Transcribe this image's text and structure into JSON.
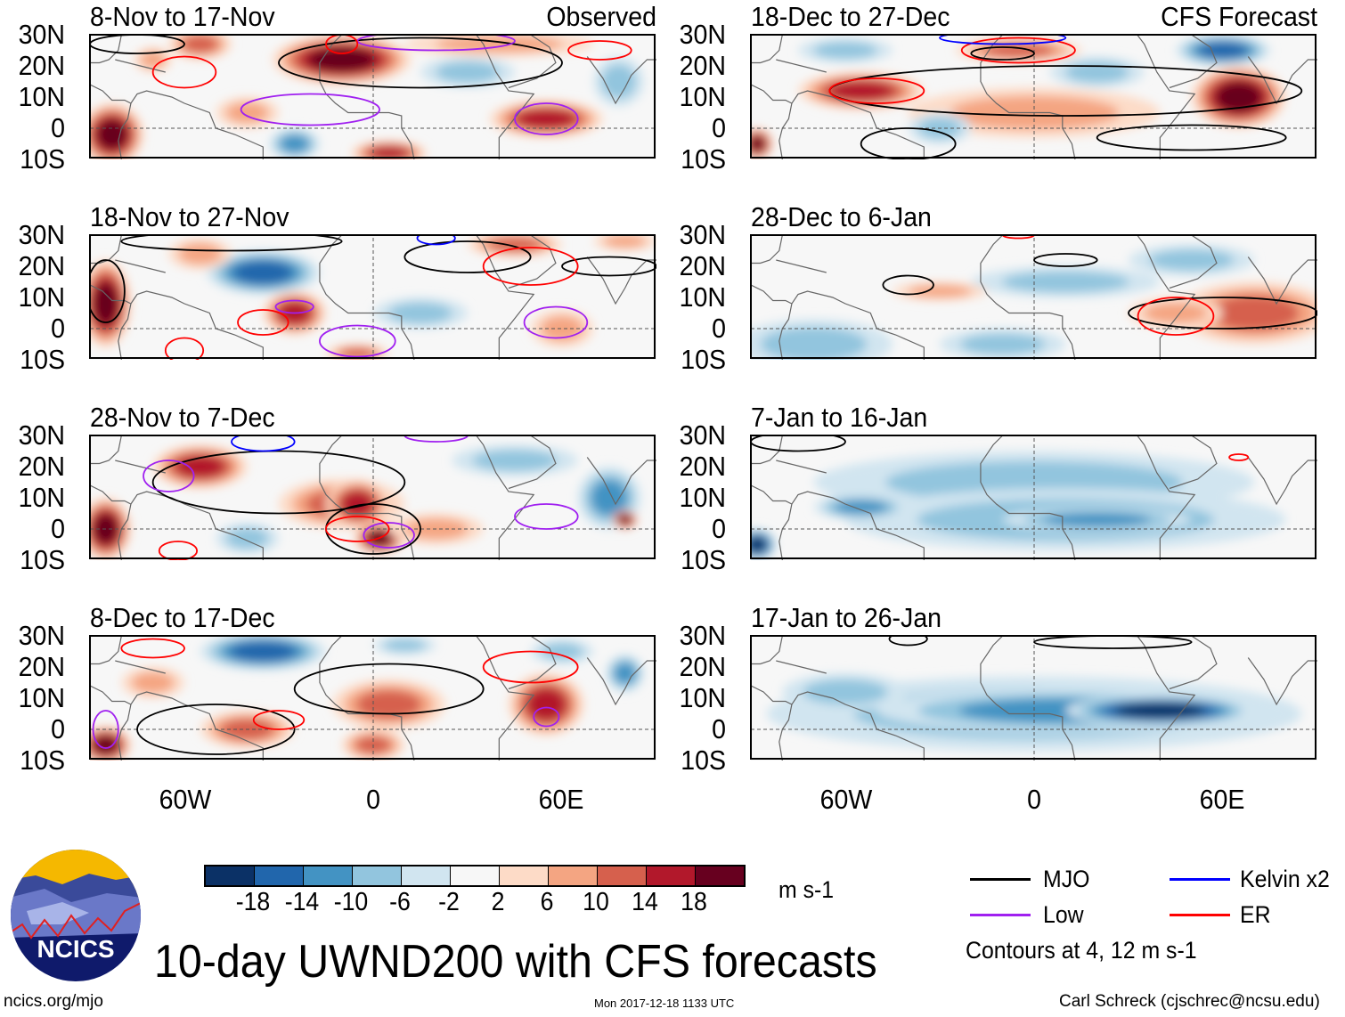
{
  "colors": {
    "bins": [
      "#0b3166",
      "#2166ac",
      "#4393c3",
      "#92c5de",
      "#d1e5f0",
      "#f7f7f7",
      "#fddbc7",
      "#f4a582",
      "#d6604d",
      "#b2182b",
      "#67001f"
    ],
    "mjo": "#000000",
    "low": "#a020f0",
    "kelvin": "#0000ff",
    "er": "#ff0000",
    "coast": "#666666"
  },
  "lat_ticks": [
    "30N",
    "20N",
    "10N",
    "0",
    "10S"
  ],
  "lon_ticks": [
    "60W",
    "0",
    "60E"
  ],
  "chart_data": {
    "type": "heatmap",
    "title": "10-day UWND200 with CFS forecasts",
    "units": "m s-1",
    "lon_range": [
      -90,
      90
    ],
    "lat_range": [
      -10,
      30
    ],
    "colorbar_ticks": [
      "-18",
      "-14",
      "-10",
      "-6",
      "-2",
      "2",
      "6",
      "10",
      "14",
      "18"
    ],
    "contour_note": "Contours at 4, 12 m s-1",
    "legend": [
      {
        "key": "mjo",
        "label": "MJO"
      },
      {
        "key": "kelvin",
        "label": "Kelvin x2"
      },
      {
        "key": "low",
        "label": "Low"
      },
      {
        "key": "er",
        "label": "ER"
      }
    ],
    "panels": [
      {
        "title": "8-Nov to 17-Nov",
        "label": "Observed",
        "column": "observed",
        "blobs": [
          [
            40,
            27,
            30,
            4,
            6
          ],
          [
            -10,
            22,
            22,
            8,
            18
          ],
          [
            -83,
            -2,
            10,
            10,
            16
          ],
          [
            -55,
            27,
            10,
            5,
            10
          ],
          [
            55,
            3,
            18,
            6,
            12
          ],
          [
            5,
            -8,
            12,
            4,
            12
          ],
          [
            -40,
            5,
            10,
            5,
            6
          ],
          [
            -25,
            -5,
            8,
            5,
            -8
          ],
          [
            30,
            18,
            15,
            5,
            -6
          ],
          [
            78,
            15,
            8,
            8,
            -4
          ],
          [
            -70,
            22,
            6,
            4,
            6
          ]
        ],
        "contours": [
          [
            "mjo",
            15,
            21,
            45,
            8
          ],
          [
            "mjo",
            -75,
            27,
            15,
            3
          ],
          [
            "low",
            55,
            3,
            10,
            5
          ],
          [
            "low",
            -20,
            6,
            22,
            5
          ],
          [
            "low",
            20,
            28,
            25,
            3
          ],
          [
            "er",
            -60,
            18,
            10,
            5
          ],
          [
            "er",
            72,
            25,
            10,
            3
          ],
          [
            "er",
            -10,
            27,
            5,
            3
          ]
        ]
      },
      {
        "title": "18-Nov to 27-Nov",
        "label": "",
        "column": "observed",
        "blobs": [
          [
            -85,
            8,
            8,
            14,
            18
          ],
          [
            -25,
            5,
            10,
            7,
            14
          ],
          [
            -35,
            18,
            18,
            7,
            -14
          ],
          [
            45,
            27,
            15,
            4,
            10
          ],
          [
            60,
            0,
            10,
            6,
            6
          ],
          [
            -5,
            -8,
            10,
            3,
            8
          ],
          [
            -55,
            24,
            10,
            5,
            6
          ],
          [
            80,
            28,
            10,
            3,
            6
          ],
          [
            15,
            5,
            15,
            5,
            -4
          ]
        ],
        "contours": [
          [
            "mjo",
            -45,
            28,
            35,
            3
          ],
          [
            "mjo",
            30,
            23,
            20,
            5
          ],
          [
            "mjo",
            75,
            20,
            15,
            3
          ],
          [
            "mjo",
            -85,
            12,
            6,
            10
          ],
          [
            "low",
            -25,
            7,
            6,
            2
          ],
          [
            "low",
            58,
            2,
            10,
            5
          ],
          [
            "low",
            -5,
            -4,
            12,
            5
          ],
          [
            "er",
            -35,
            2,
            8,
            4
          ],
          [
            "er",
            50,
            20,
            15,
            6
          ],
          [
            "kelvin",
            20,
            29,
            6,
            2
          ],
          [
            "er",
            -60,
            -7,
            6,
            4
          ]
        ]
      },
      {
        "title": "28-Nov to 7-Dec",
        "label": "",
        "column": "observed",
        "blobs": [
          [
            -55,
            20,
            15,
            7,
            14
          ],
          [
            -85,
            0,
            8,
            10,
            16
          ],
          [
            -10,
            8,
            20,
            8,
            10
          ],
          [
            -5,
            8,
            10,
            8,
            14
          ],
          [
            2,
            -3,
            8,
            5,
            18
          ],
          [
            20,
            0,
            15,
            5,
            6
          ],
          [
            75,
            10,
            10,
            10,
            -10
          ],
          [
            45,
            22,
            20,
            5,
            -4
          ],
          [
            -40,
            -3,
            10,
            5,
            -4
          ],
          [
            80,
            3,
            4,
            3,
            18
          ]
        ],
        "contours": [
          [
            "mjo",
            -30,
            15,
            40,
            10
          ],
          [
            "mjo",
            0,
            0,
            15,
            8
          ],
          [
            "low",
            55,
            4,
            10,
            4
          ],
          [
            "low",
            5,
            -2,
            8,
            4
          ],
          [
            "low",
            -65,
            17,
            8,
            5
          ],
          [
            "kelvin",
            -35,
            28,
            10,
            3
          ],
          [
            "er",
            -5,
            0,
            10,
            4
          ],
          [
            "er",
            -62,
            -7,
            6,
            3
          ],
          [
            "low",
            20,
            30,
            10,
            2
          ]
        ]
      },
      {
        "title": "8-Dec to 17-Dec",
        "label": "",
        "column": "observed",
        "blobs": [
          [
            -35,
            25,
            20,
            6,
            -14
          ],
          [
            10,
            27,
            10,
            3,
            -6
          ],
          [
            55,
            8,
            12,
            10,
            14
          ],
          [
            5,
            8,
            18,
            8,
            10
          ],
          [
            -40,
            0,
            15,
            6,
            8
          ],
          [
            -85,
            -5,
            8,
            6,
            16
          ],
          [
            -70,
            15,
            10,
            5,
            6
          ],
          [
            60,
            25,
            10,
            4,
            -4
          ],
          [
            0,
            -5,
            10,
            5,
            8
          ],
          [
            80,
            18,
            6,
            6,
            -10
          ]
        ],
        "contours": [
          [
            "mjo",
            5,
            13,
            30,
            8
          ],
          [
            "mjo",
            -50,
            0,
            25,
            8
          ],
          [
            "er",
            50,
            20,
            15,
            5
          ],
          [
            "er",
            -30,
            3,
            8,
            3
          ],
          [
            "low",
            55,
            4,
            4,
            3
          ],
          [
            "er",
            -70,
            26,
            10,
            3
          ],
          [
            "low",
            -85,
            0,
            4,
            6
          ]
        ]
      },
      {
        "title": "18-Dec to 27-Dec",
        "label": "CFS Forecast",
        "column": "forecast",
        "blobs": [
          [
            0,
            5,
            40,
            8,
            4
          ],
          [
            -55,
            12,
            20,
            6,
            14
          ],
          [
            65,
            10,
            15,
            10,
            18
          ],
          [
            -5,
            25,
            20,
            4,
            10
          ],
          [
            60,
            25,
            15,
            5,
            -14
          ],
          [
            20,
            18,
            15,
            5,
            -6
          ],
          [
            -60,
            25,
            15,
            4,
            -6
          ],
          [
            -88,
            -5,
            5,
            5,
            16
          ],
          [
            -30,
            0,
            10,
            5,
            -4
          ]
        ],
        "contours": [
          [
            "mjo",
            10,
            12,
            75,
            8
          ],
          [
            "mjo",
            -40,
            -5,
            15,
            5
          ],
          [
            "mjo",
            50,
            -3,
            30,
            4
          ],
          [
            "er",
            -50,
            12,
            15,
            4
          ],
          [
            "er",
            -5,
            25,
            18,
            4
          ],
          [
            "kelvin",
            -10,
            29,
            20,
            2
          ],
          [
            "mjo",
            -10,
            24,
            10,
            2
          ]
        ]
      },
      {
        "title": "28-Dec to 6-Jan",
        "label": "",
        "column": "forecast",
        "blobs": [
          [
            70,
            5,
            25,
            10,
            8
          ],
          [
            45,
            5,
            15,
            5,
            6
          ],
          [
            -70,
            -5,
            25,
            8,
            -6
          ],
          [
            10,
            15,
            30,
            5,
            -4
          ],
          [
            -10,
            -5,
            20,
            5,
            -4
          ],
          [
            -30,
            12,
            15,
            3,
            4
          ],
          [
            50,
            22,
            20,
            5,
            -4
          ]
        ],
        "contours": [
          [
            "mjo",
            -40,
            14,
            8,
            3
          ],
          [
            "mjo",
            10,
            22,
            10,
            2
          ],
          [
            "mjo",
            60,
            5,
            30,
            5
          ],
          [
            "er",
            45,
            4,
            12,
            6
          ],
          [
            "er",
            -5,
            30,
            5,
            1
          ]
        ]
      },
      {
        "title": "7-Jan to 16-Jan",
        "label": "",
        "column": "forecast",
        "blobs": [
          [
            0,
            15,
            70,
            10,
            -4
          ],
          [
            10,
            3,
            70,
            10,
            -6
          ],
          [
            20,
            3,
            30,
            4,
            -10
          ],
          [
            -55,
            7,
            15,
            4,
            -10
          ],
          [
            -88,
            -5,
            6,
            5,
            -16
          ]
        ],
        "contours": [
          [
            "mjo",
            -75,
            28,
            15,
            3
          ],
          [
            "er",
            65,
            23,
            3,
            1
          ]
        ]
      },
      {
        "title": "17-Jan to 26-Jan",
        "label": "",
        "column": "forecast",
        "blobs": [
          [
            0,
            5,
            85,
            12,
            -6
          ],
          [
            -60,
            12,
            20,
            6,
            -6
          ],
          [
            10,
            6,
            60,
            7,
            -10
          ],
          [
            40,
            6,
            30,
            5,
            -18
          ]
        ],
        "contours": [
          [
            "mjo",
            25,
            28,
            25,
            2
          ],
          [
            "mjo",
            -40,
            29,
            6,
            2
          ]
        ]
      }
    ]
  },
  "logo": {
    "text": "NCICS"
  },
  "footer": {
    "left": "ncics.org/mjo",
    "center": "Mon 2017-12-18 1133 UTC",
    "right": "Carl Schreck (cjschrec@ncsu.edu)"
  }
}
